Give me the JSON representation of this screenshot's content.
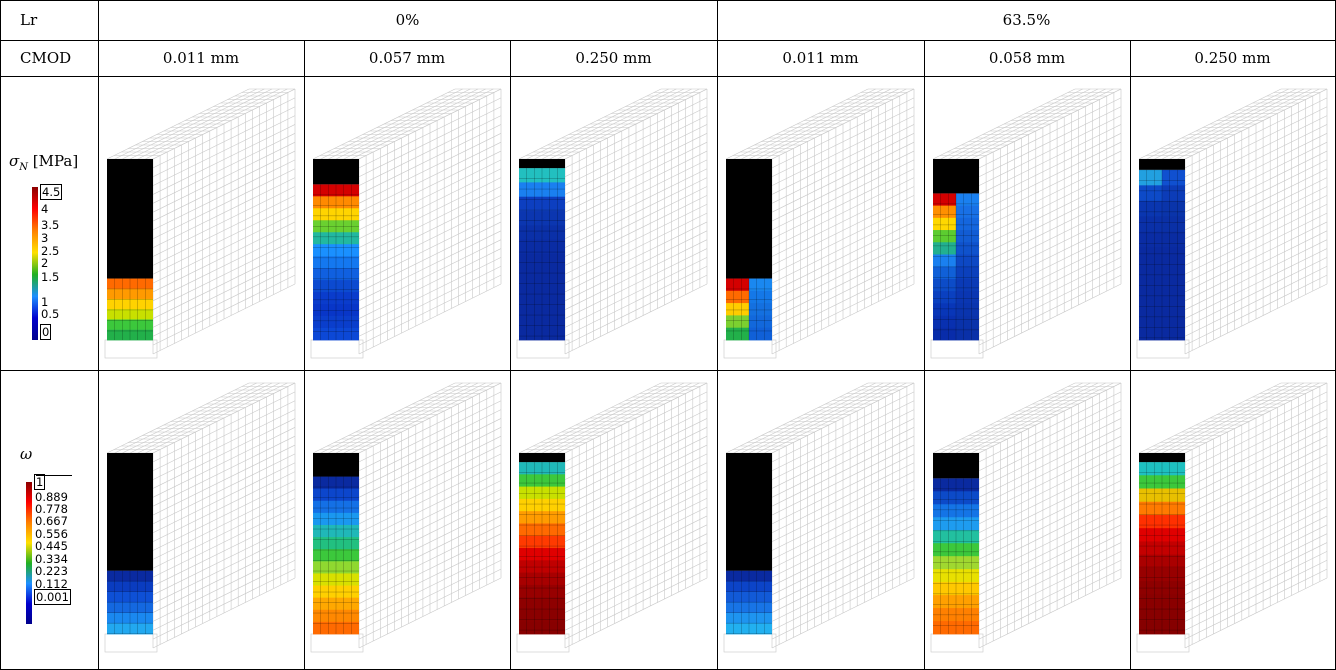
{
  "header": {
    "row_label": "Lr",
    "groups": [
      "0%",
      "63.5%"
    ],
    "sub_label": "CMOD",
    "cmod": [
      "0.011 mm",
      "0.057 mm",
      "0.250 mm",
      "0.011 mm",
      "0.058 mm",
      "0.250 mm"
    ]
  },
  "legend_stress": {
    "symbol": "σ",
    "subscript": "N",
    "unit": "[MPa]",
    "ticks": [
      "4.5",
      "4",
      "3.5",
      "3",
      "2.5",
      "2",
      "1.5",
      "1",
      "0.5",
      "0"
    ]
  },
  "legend_damage": {
    "symbol": "ω",
    "ticks": [
      "1",
      "0.889",
      "0.778",
      "0.667",
      "0.556",
      "0.445",
      "0.334",
      "0.223",
      "0.112",
      "0.001"
    ]
  },
  "colors": {
    "gradient_low": "#00008b",
    "gradient_mid_blue": "#1e90ff",
    "gradient_green": "#21b021",
    "gradient_yellow": "#ffe000",
    "gradient_orange": "#ff7a00",
    "gradient_high": "#8b0000",
    "mesh": "#c8c8c8",
    "unloaded": "#000000"
  },
  "panels": {
    "stress": [
      {
        "top_black": 0.66,
        "bands": [
          "#ff6a00",
          "#ff9a00",
          "#ffd200",
          "#c8e000",
          "#3cc83c",
          "#22b04a"
        ]
      },
      {
        "top_black": 0.14,
        "bands": [
          "#d40000",
          "#ff8a00",
          "#ffd400",
          "#6ad030",
          "#22b8a0",
          "#1a90ff",
          "#1478f0",
          "#1060e0",
          "#0c4ad0",
          "#0a3ccc",
          "#0836c8",
          "#0a3ecc",
          "#0c48d6"
        ]
      },
      {
        "top_black": 0.05,
        "bands": [
          "#22c0c0",
          "#1a80f0",
          "#0d3fc0",
          "#0b36b0",
          "#0a30a8",
          "#0a2ca4",
          "#0a2aa0",
          "#0a2aa0",
          "#0a2aa0",
          "#0a2aa0",
          "#0a2aa0",
          "#0a2aa0"
        ]
      },
      {
        "top_black": 0.66,
        "split": true,
        "left": [
          "#d40000",
          "#ff6a00",
          "#ffcc00",
          "#7cd030",
          "#22b04a"
        ],
        "right": [
          "#1a88f0",
          "#1478e8",
          "#1470e0",
          "#1268dc",
          "#1060d8"
        ]
      },
      {
        "top_black": 0.19,
        "split": true,
        "left": [
          "#d40000",
          "#ff9000",
          "#ffd800",
          "#5ccc30",
          "#22b090",
          "#1a80f0",
          "#1060d8",
          "#0c4cc8",
          "#0a40c0",
          "#0836b8",
          "#0830b0",
          "#082caa"
        ],
        "right": [
          "#1a80f0",
          "#1870e6",
          "#1466de",
          "#125cd4",
          "#0f52cc",
          "#0d48c4",
          "#0b40bc",
          "#0a3ab6",
          "#0a36b2",
          "#0934ae",
          "#0932aa",
          "#0930a8"
        ]
      },
      {
        "top_black": 0.06,
        "split": true,
        "left": [
          "#22a0e0",
          "#0d4ac8",
          "#0a36b0",
          "#0a30a8",
          "#0a2ca4",
          "#0a2aa0",
          "#0a2aa0",
          "#0a2aa0",
          "#0a2aa0",
          "#0a2aa0",
          "#0a2aa0"
        ],
        "right": [
          "#1050d0",
          "#0c3cb8",
          "#0a34aa",
          "#0a30a6",
          "#0a2ca2",
          "#0a2aa0",
          "#0a2aa0",
          "#0a2aa0",
          "#0a2aa0",
          "#0a2aa0",
          "#0a2aa0"
        ]
      }
    ],
    "damage": [
      {
        "top_black": 0.65,
        "bands": [
          "#0a2aa0",
          "#0a3cc0",
          "#0e50d6",
          "#1468e0",
          "#1a88f0",
          "#22a8f0"
        ]
      },
      {
        "top_black": 0.13,
        "bands": [
          "#0a2aa0",
          "#0c46cc",
          "#1470e6",
          "#1a98f0",
          "#20b8b8",
          "#22c080",
          "#3cc83c",
          "#90d830",
          "#d8e000",
          "#ffd000",
          "#ffa800",
          "#ff8800",
          "#ff6a00"
        ]
      },
      {
        "top_black": 0.05,
        "bands": [
          "#20b8b8",
          "#3cc83c",
          "#c8e000",
          "#ffd000",
          "#ff9c00",
          "#ff6a00",
          "#ff3a00",
          "#e00000",
          "#c00000",
          "#a80000",
          "#980000",
          "#8e0000",
          "#8a0000",
          "#880000"
        ]
      },
      {
        "top_black": 0.65,
        "bands": [
          "#0a2aa0",
          "#0c44c8",
          "#125ad8",
          "#1874e6",
          "#1e94f0",
          "#22b0f0"
        ]
      },
      {
        "top_black": 0.14,
        "bands": [
          "#0a2aa0",
          "#0c4ac8",
          "#1474e6",
          "#1e9cf0",
          "#22c0a0",
          "#3cc83c",
          "#a0d830",
          "#e8e000",
          "#ffc800",
          "#ffa000",
          "#ff8000",
          "#ff6a00"
        ]
      },
      {
        "top_black": 0.05,
        "bands": [
          "#1ec0c0",
          "#3cc83c",
          "#e8c000",
          "#ff7a00",
          "#ff3000",
          "#e00000",
          "#c40000",
          "#aa0000",
          "#980000",
          "#8e0000",
          "#8a0000",
          "#880000",
          "#860000"
        ]
      }
    ]
  }
}
